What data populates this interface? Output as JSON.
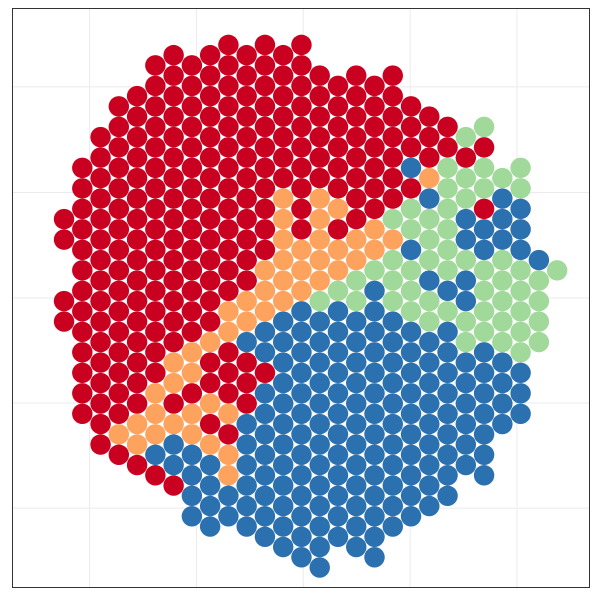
{
  "chart_data": {
    "type": "scatter",
    "xlim": [
      -2.85,
      28.8
    ],
    "ylim": [
      0,
      56.6
    ],
    "xticks": [
      1.4,
      7.25,
      13.1,
      18.95,
      24.8
    ],
    "yticks": [
      7.8,
      18.05,
      28.3,
      38.6,
      48.9
    ],
    "grid": true,
    "series": [
      {
        "color": "#ca0020",
        "x": [
          0,
          0,
          0,
          0,
          1,
          1,
          1,
          1,
          1,
          1,
          1,
          1,
          1,
          1,
          1,
          1,
          1,
          2,
          2,
          2,
          2,
          2,
          2,
          2,
          2,
          2,
          2,
          2,
          2,
          2,
          2,
          2,
          2,
          3,
          3,
          3,
          3,
          3,
          3,
          3,
          3,
          3,
          3,
          3,
          3,
          3,
          3,
          3,
          3,
          3,
          4,
          4,
          4,
          4,
          4,
          4,
          4,
          4,
          4,
          4,
          4,
          4,
          4,
          4,
          4,
          4,
          4,
          5,
          5,
          5,
          5,
          5,
          5,
          5,
          5,
          5,
          5,
          5,
          5,
          5,
          5,
          5,
          5,
          5,
          6,
          6,
          6,
          6,
          6,
          6,
          6,
          6,
          6,
          6,
          6,
          6,
          6,
          6,
          6,
          6,
          6,
          7,
          7,
          7,
          7,
          7,
          7,
          7,
          7,
          7,
          7,
          7,
          7,
          7,
          7,
          7,
          8,
          8,
          8,
          8,
          8,
          8,
          8,
          8,
          8,
          8,
          8,
          8,
          8,
          8,
          8,
          8,
          8,
          9,
          9,
          9,
          9,
          9,
          9,
          9,
          9,
          9,
          9,
          9,
          9,
          9,
          9,
          9,
          9,
          9,
          10,
          10,
          10,
          10,
          10,
          10,
          10,
          10,
          10,
          10,
          10,
          10,
          10,
          10,
          10,
          11,
          11,
          11,
          11,
          11,
          11,
          11,
          11,
          11,
          11,
          11,
          11,
          12,
          12,
          12,
          12,
          12,
          12,
          12,
          13,
          13,
          13,
          13,
          13,
          13,
          13,
          13,
          13,
          13,
          14,
          14,
          14,
          14,
          14,
          14,
          15,
          15,
          15,
          15,
          15,
          15,
          15,
          16,
          16,
          16,
          16,
          16,
          16,
          16,
          16,
          17,
          17,
          17,
          17,
          17,
          17,
          17,
          18,
          18,
          18,
          18,
          18,
          18,
          18,
          19,
          19,
          19,
          19,
          20,
          20,
          20,
          21,
          21,
          22,
          23,
          23
        ],
        "y": [
          36,
          34,
          28,
          26,
          41,
          39,
          37,
          35,
          33,
          31,
          29,
          27,
          25,
          23,
          21,
          19,
          17,
          44,
          42,
          40,
          38,
          36,
          34,
          32,
          30,
          28,
          26,
          24,
          22,
          20,
          18,
          16,
          14,
          47,
          45,
          43,
          41,
          39,
          37,
          35,
          33,
          31,
          29,
          27,
          25,
          23,
          21,
          19,
          17,
          13,
          48,
          46,
          44,
          42,
          40,
          38,
          36,
          34,
          32,
          30,
          28,
          26,
          24,
          22,
          20,
          18,
          12,
          51,
          49,
          47,
          45,
          43,
          41,
          39,
          37,
          35,
          33,
          31,
          29,
          27,
          25,
          23,
          21,
          11,
          52,
          50,
          48,
          46,
          44,
          42,
          40,
          38,
          36,
          34,
          32,
          30,
          28,
          26,
          24,
          18,
          10,
          51,
          49,
          47,
          45,
          43,
          41,
          39,
          37,
          35,
          33,
          31,
          29,
          27,
          25,
          19,
          52,
          50,
          48,
          46,
          44,
          42,
          40,
          38,
          36,
          34,
          32,
          30,
          28,
          26,
          22,
          20,
          16,
          53,
          51,
          49,
          47,
          45,
          43,
          41,
          39,
          37,
          35,
          33,
          31,
          29,
          23,
          21,
          19,
          15,
          52,
          50,
          48,
          46,
          44,
          42,
          40,
          38,
          36,
          34,
          32,
          30,
          22,
          20,
          18,
          53,
          51,
          49,
          47,
          45,
          43,
          41,
          39,
          37,
          35,
          33,
          21,
          52,
          50,
          48,
          46,
          44,
          42,
          40,
          53,
          51,
          49,
          47,
          45,
          43,
          41,
          39,
          37,
          35,
          50,
          48,
          46,
          44,
          42,
          40,
          49,
          47,
          45,
          43,
          41,
          39,
          35,
          50,
          48,
          46,
          44,
          42,
          40,
          38,
          36,
          49,
          47,
          45,
          43,
          41,
          39,
          37,
          50,
          48,
          46,
          44,
          42,
          40,
          38,
          47,
          45,
          43,
          39,
          46,
          44,
          42,
          45,
          43,
          42,
          43,
          37
        ]
      },
      {
        "color": "#fda35e",
        "x": [
          3,
          4,
          4,
          5,
          5,
          5,
          6,
          6,
          6,
          7,
          7,
          7,
          7,
          8,
          8,
          8,
          9,
          9,
          9,
          9,
          9,
          10,
          10,
          11,
          11,
          11,
          12,
          12,
          12,
          12,
          12,
          12,
          13,
          13,
          13,
          14,
          14,
          14,
          14,
          14,
          15,
          15,
          15,
          16,
          16,
          17,
          17,
          18,
          20
        ],
        "y": [
          15,
          16,
          14,
          19,
          17,
          15,
          22,
          20,
          16,
          23,
          21,
          17,
          15,
          24,
          18,
          14,
          27,
          25,
          17,
          13,
          11,
          28,
          26,
          31,
          29,
          27,
          38,
          36,
          34,
          32,
          30,
          28,
          33,
          31,
          29,
          38,
          36,
          34,
          32,
          30,
          37,
          33,
          31,
          34,
          32,
          35,
          33,
          34,
          40
        ]
      },
      {
        "color": "#a1d99b",
        "x": [
          14,
          15,
          16,
          16,
          17,
          18,
          18,
          18,
          18,
          19,
          19,
          19,
          19,
          19,
          20,
          20,
          20,
          20,
          20,
          21,
          21,
          21,
          21,
          21,
          21,
          21,
          22,
          22,
          22,
          22,
          22,
          22,
          23,
          23,
          23,
          23,
          23,
          23,
          23,
          24,
          24,
          24,
          24,
          24,
          24,
          25,
          25,
          25,
          25,
          25,
          25,
          25,
          26,
          26,
          26,
          26,
          27
        ],
        "y": [
          28,
          29,
          30,
          28,
          31,
          36,
          32,
          30,
          28,
          37,
          35,
          31,
          29,
          27,
          36,
          34,
          32,
          28,
          26,
          41,
          39,
          37,
          35,
          33,
          31,
          27,
          44,
          40,
          38,
          32,
          26,
          24,
          45,
          41,
          39,
          31,
          29,
          27,
          25,
          40,
          32,
          30,
          28,
          26,
          24,
          41,
          39,
          31,
          29,
          27,
          25,
          23,
          30,
          28,
          26,
          24,
          31
        ]
      },
      {
        "color": "#2b70af",
        "x": [
          5,
          6,
          6,
          7,
          7,
          7,
          7,
          8,
          8,
          8,
          8,
          9,
          9,
          10,
          10,
          10,
          10,
          10,
          10,
          10,
          11,
          11,
          11,
          11,
          11,
          11,
          11,
          11,
          11,
          11,
          12,
          12,
          12,
          12,
          12,
          12,
          12,
          12,
          12,
          12,
          12,
          12,
          13,
          13,
          13,
          13,
          13,
          13,
          13,
          13,
          13,
          13,
          13,
          13,
          13,
          14,
          14,
          14,
          14,
          14,
          14,
          14,
          14,
          14,
          14,
          14,
          14,
          14,
          15,
          15,
          15,
          15,
          15,
          15,
          15,
          15,
          15,
          15,
          15,
          15,
          16,
          16,
          16,
          16,
          16,
          16,
          16,
          16,
          16,
          16,
          16,
          16,
          17,
          17,
          17,
          17,
          17,
          17,
          17,
          17,
          17,
          17,
          17,
          17,
          17,
          17,
          18,
          18,
          18,
          18,
          18,
          18,
          18,
          18,
          18,
          18,
          18,
          19,
          19,
          19,
          19,
          19,
          19,
          19,
          19,
          19,
          19,
          19,
          19,
          20,
          20,
          20,
          20,
          20,
          20,
          20,
          20,
          20,
          20,
          20,
          21,
          21,
          21,
          21,
          21,
          21,
          21,
          21,
          21,
          21,
          22,
          22,
          22,
          22,
          22,
          22,
          22,
          22,
          22,
          22,
          23,
          23,
          23,
          23,
          23,
          23,
          23,
          23,
          23,
          24,
          24,
          24,
          24,
          24,
          24,
          24,
          25,
          25,
          25,
          25,
          25,
          25,
          26
        ],
        "y": [
          13,
          14,
          12,
          13,
          11,
          9,
          7,
          12,
          10,
          8,
          6,
          9,
          7,
          24,
          16,
          14,
          12,
          10,
          8,
          6,
          25,
          23,
          19,
          17,
          15,
          13,
          11,
          9,
          7,
          5,
          26,
          24,
          22,
          20,
          18,
          16,
          14,
          12,
          10,
          8,
          6,
          4,
          27,
          25,
          23,
          21,
          19,
          17,
          15,
          13,
          11,
          9,
          7,
          5,
          3,
          26,
          24,
          22,
          20,
          18,
          16,
          14,
          12,
          10,
          8,
          6,
          4,
          2,
          27,
          25,
          23,
          21,
          19,
          17,
          15,
          13,
          11,
          9,
          7,
          5,
          26,
          24,
          22,
          20,
          18,
          16,
          14,
          12,
          10,
          8,
          6,
          4,
          29,
          27,
          25,
          23,
          21,
          19,
          17,
          15,
          13,
          11,
          9,
          7,
          5,
          3,
          26,
          24,
          22,
          20,
          18,
          16,
          14,
          12,
          10,
          8,
          6,
          41,
          33,
          25,
          23,
          21,
          19,
          17,
          15,
          13,
          11,
          9,
          7,
          38,
          30,
          24,
          22,
          20,
          18,
          16,
          14,
          12,
          10,
          8,
          29,
          25,
          23,
          21,
          19,
          17,
          15,
          13,
          11,
          9,
          36,
          34,
          30,
          28,
          22,
          20,
          18,
          16,
          14,
          12,
          35,
          33,
          23,
          21,
          19,
          17,
          15,
          13,
          11,
          38,
          36,
          34,
          22,
          20,
          18,
          16,
          37,
          35,
          33,
          21,
          19,
          17,
          32
        ]
      }
    ]
  }
}
